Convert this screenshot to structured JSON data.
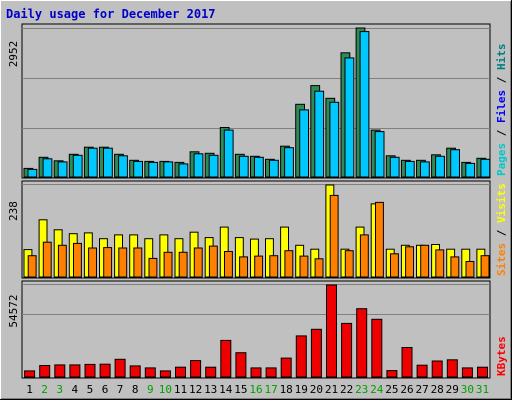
{
  "title": "Daily usage for December 2017",
  "colors": {
    "hits": "#00c8c8",
    "files": "#0000ff",
    "pages": "#00c8c8",
    "visits": "#ffff00",
    "sites": "#ff8000",
    "kbytes": "#ff0000",
    "weekday_label": "#000000",
    "weekend_label": "#00a000",
    "hits_fill": "#2e8b57",
    "files_fill": "#00c8ff",
    "pages_fill": "#00c8ff",
    "visits_fill": "#ffff00",
    "sites_fill": "#ff8000",
    "kbytes_fill": "#ee0000"
  },
  "chart_data": [
    {
      "type": "bar",
      "panel": "requests",
      "ymax_label": "2952",
      "ylim": [
        0,
        2952
      ],
      "legend": [
        {
          "text": "Pages",
          "color": "#00c8c8"
        },
        {
          "text": " / ",
          "color": "#000000"
        },
        {
          "text": "Files",
          "color": "#0000ff"
        },
        {
          "text": " / ",
          "color": "#000000"
        },
        {
          "text": "Hits",
          "color": "#008080"
        }
      ],
      "categories": [
        "1",
        "2",
        "3",
        "4",
        "5",
        "6",
        "7",
        "8",
        "9",
        "10",
        "11",
        "12",
        "13",
        "14",
        "15",
        "16",
        "17",
        "18",
        "19",
        "20",
        "21",
        "22",
        "23",
        "24",
        "25",
        "26",
        "27",
        "28",
        "29",
        "30",
        "31"
      ],
      "series": [
        {
          "name": "Hits",
          "values": [
            170,
            390,
            320,
            450,
            590,
            590,
            450,
            330,
            310,
            310,
            290,
            500,
            470,
            980,
            450,
            410,
            350,
            610,
            1440,
            1810,
            1560,
            2460,
            2952,
            930,
            420,
            330,
            330,
            440,
            570,
            290,
            370
          ]
        },
        {
          "name": "Files",
          "values": [
            150,
            360,
            300,
            430,
            570,
            570,
            420,
            310,
            290,
            300,
            260,
            460,
            430,
            930,
            410,
            390,
            330,
            580,
            1330,
            1700,
            1480,
            2360,
            2880,
            900,
            390,
            310,
            300,
            410,
            540,
            270,
            350
          ]
        },
        {
          "name": "Pages",
          "values": [
            150,
            360,
            300,
            430,
            570,
            570,
            420,
            310,
            290,
            300,
            260,
            460,
            430,
            930,
            410,
            390,
            330,
            580,
            1330,
            1700,
            1480,
            2360,
            2880,
            900,
            390,
            310,
            300,
            410,
            540,
            270,
            350
          ]
        }
      ]
    },
    {
      "type": "bar",
      "panel": "visitors",
      "ymax_label": "238",
      "ylim": [
        0,
        238
      ],
      "legend": [
        {
          "text": "Sites",
          "color": "#ff8000"
        },
        {
          "text": " / ",
          "color": "#000000"
        },
        {
          "text": "Visits",
          "color": "#ffff00"
        }
      ],
      "categories": [
        "1",
        "2",
        "3",
        "4",
        "5",
        "6",
        "7",
        "8",
        "9",
        "10",
        "11",
        "12",
        "13",
        "14",
        "15",
        "16",
        "17",
        "18",
        "19",
        "20",
        "21",
        "22",
        "23",
        "24",
        "25",
        "26",
        "27",
        "28",
        "29",
        "30",
        "31"
      ],
      "series": [
        {
          "name": "Visits",
          "values": [
            71,
            148,
            122,
            112,
            114,
            99,
            109,
            109,
            99,
            109,
            99,
            116,
            102,
            129,
            102,
            98,
            99,
            129,
            82,
            72,
            238,
            72,
            129,
            189,
            72,
            82,
            82,
            84,
            72,
            72,
            72
          ]
        },
        {
          "name": "Sites",
          "values": [
            55,
            90,
            82,
            87,
            75,
            76,
            75,
            75,
            48,
            64,
            64,
            75,
            80,
            66,
            52,
            54,
            55,
            68,
            54,
            47,
            211,
            68,
            109,
            193,
            60,
            78,
            82,
            70,
            52,
            40,
            55
          ]
        }
      ]
    },
    {
      "type": "bar",
      "panel": "kbytes",
      "ymax_label": "54572",
      "ylim": [
        0,
        54572
      ],
      "legend": [
        {
          "text": "KBytes",
          "color": "#ff0000"
        }
      ],
      "categories": [
        "1",
        "2",
        "3",
        "4",
        "5",
        "6",
        "7",
        "8",
        "9",
        "10",
        "11",
        "12",
        "13",
        "14",
        "15",
        "16",
        "17",
        "18",
        "19",
        "20",
        "21",
        "22",
        "23",
        "24",
        "25",
        "26",
        "27",
        "28",
        "29",
        "30",
        "31"
      ],
      "series": [
        {
          "name": "KBytes",
          "values": [
            3600,
            6800,
            7200,
            7200,
            7500,
            7600,
            10500,
            6600,
            5400,
            3600,
            5800,
            9700,
            5800,
            21700,
            14400,
            5400,
            5400,
            11200,
            24400,
            28300,
            54572,
            31800,
            40500,
            34200,
            3800,
            17500,
            7000,
            9500,
            10200,
            5400,
            5800
          ]
        }
      ]
    }
  ],
  "weekend_days": [
    2,
    3,
    9,
    10,
    16,
    17,
    23,
    24,
    30,
    31
  ]
}
